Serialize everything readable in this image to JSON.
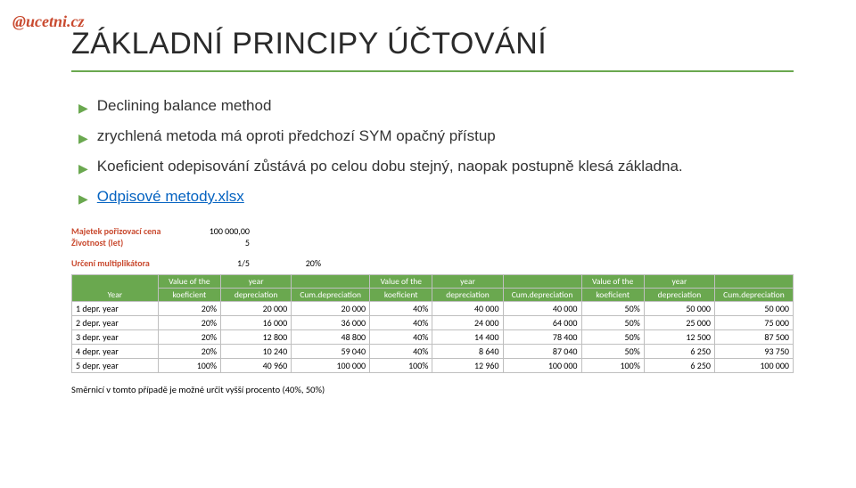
{
  "watermark": "@ucetni.cz",
  "title": "ZÁKLADNÍ PRINCIPY ÚČTOVÁNÍ",
  "bullets": [
    {
      "text": "Declining balance method",
      "link": false
    },
    {
      "text": "zrychlená metoda má oproti předchozí SYM opačný přístup",
      "link": false
    },
    {
      "text": "Koeficient odepisování zůstává po celou dobu stejný, naopak postupně klesá základna.",
      "link": false
    },
    {
      "text": "Odpisové metody.xlsx",
      "link": true
    }
  ],
  "params": {
    "rows": [
      {
        "label": "Majetek pořizovací cena",
        "value": "100 000,00"
      },
      {
        "label": "Životnost (let)",
        "value": "5"
      }
    ]
  },
  "multiplikator": {
    "label": "Určení multiplikátora",
    "v1": "1/5",
    "v2": "20%"
  },
  "table": {
    "head1": [
      "Year",
      "Value of the",
      "year",
      "",
      "Value of the",
      "year",
      "",
      "Value of the",
      "year",
      ""
    ],
    "head2": [
      "",
      "koeficient",
      "depreciation",
      "Cum.depreciation",
      "koeficient",
      "depreciation",
      "Cum.depreciation",
      "koeficient",
      "depreciation",
      "Cum.depreciation"
    ],
    "rows": [
      [
        "1 depr. year",
        "20%",
        "20 000",
        "20 000",
        "40%",
        "40 000",
        "40 000",
        "50%",
        "50 000",
        "50 000"
      ],
      [
        "2 depr. year",
        "20%",
        "16 000",
        "36 000",
        "40%",
        "24 000",
        "64 000",
        "50%",
        "25 000",
        "75 000"
      ],
      [
        "3 depr. year",
        "20%",
        "12 800",
        "48 800",
        "40%",
        "14 400",
        "78 400",
        "50%",
        "12 500",
        "87 500"
      ],
      [
        "4 depr. year",
        "20%",
        "10 240",
        "59 040",
        "40%",
        "8 640",
        "87 040",
        "50%",
        "6 250",
        "93 750"
      ],
      [
        "5 depr. year",
        "100%",
        "40 960",
        "100 000",
        "100%",
        "12 960",
        "100 000",
        "100%",
        "6 250",
        "100 000"
      ]
    ]
  },
  "footnote": "Směrnicí v tomto případě je možné určit vyšší procento (40%, 50%)"
}
